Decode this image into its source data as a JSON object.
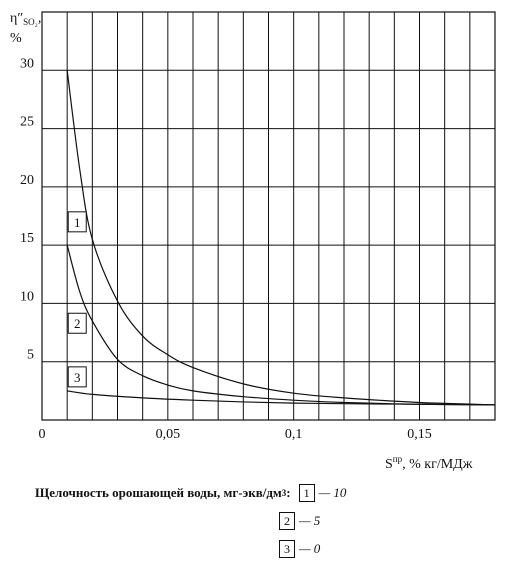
{
  "chart_data": {
    "type": "line",
    "ylabel_symbol": "η″",
    "ylabel_sub": "SO₂",
    "ylabel_suffix": ",",
    "ylabel_unit": "%",
    "xlabel_main": "S",
    "xlabel_sup": "пр",
    "xlabel_unit": ", % кг/МДж",
    "xlim": [
      0,
      0.18
    ],
    "ylim": [
      0,
      35
    ],
    "x_ticks": [
      {
        "v": 0,
        "label": "0"
      },
      {
        "v": 0.05,
        "label": "0,05"
      },
      {
        "v": 0.1,
        "label": "0,1"
      },
      {
        "v": 0.15,
        "label": "0,15"
      }
    ],
    "y_ticks": [
      {
        "v": 5,
        "label": "5"
      },
      {
        "v": 10,
        "label": "10"
      },
      {
        "v": 15,
        "label": "15"
      },
      {
        "v": 20,
        "label": "20"
      },
      {
        "v": 25,
        "label": "25"
      },
      {
        "v": 30,
        "label": "30"
      }
    ],
    "grid": true,
    "series": [
      {
        "name": "1",
        "label_at": [
          0.014,
          17
        ],
        "points": [
          [
            0.01,
            30
          ],
          [
            0.015,
            21.5
          ],
          [
            0.02,
            15.5
          ],
          [
            0.03,
            10.2
          ],
          [
            0.04,
            7.2
          ],
          [
            0.05,
            5.6
          ],
          [
            0.06,
            4.5
          ],
          [
            0.08,
            3.1
          ],
          [
            0.1,
            2.3
          ],
          [
            0.12,
            1.9
          ],
          [
            0.15,
            1.5
          ],
          [
            0.18,
            1.3
          ]
        ]
      },
      {
        "name": "2",
        "label_at": [
          0.014,
          8.3
        ],
        "points": [
          [
            0.01,
            15
          ],
          [
            0.015,
            11
          ],
          [
            0.02,
            8.5
          ],
          [
            0.03,
            5.2
          ],
          [
            0.04,
            3.8
          ],
          [
            0.05,
            3.0
          ],
          [
            0.06,
            2.5
          ],
          [
            0.08,
            2.0
          ],
          [
            0.1,
            1.7
          ],
          [
            0.12,
            1.5
          ],
          [
            0.15,
            1.35
          ],
          [
            0.18,
            1.3
          ]
        ]
      },
      {
        "name": "3",
        "label_at": [
          0.014,
          3.7
        ],
        "points": [
          [
            0.01,
            2.5
          ],
          [
            0.02,
            2.2
          ],
          [
            0.04,
            1.9
          ],
          [
            0.06,
            1.7
          ],
          [
            0.08,
            1.55
          ],
          [
            0.1,
            1.45
          ],
          [
            0.12,
            1.4
          ],
          [
            0.15,
            1.35
          ],
          [
            0.18,
            1.3
          ]
        ]
      }
    ]
  },
  "legend": {
    "title": "Щелочность орошающей воды, мг-экв/дм",
    "title_sup": "3",
    "title_colon": ":",
    "items": [
      {
        "box": "1",
        "value": "— 10"
      },
      {
        "box": "2",
        "value": "— 5"
      },
      {
        "box": "3",
        "value": "— 0"
      }
    ]
  }
}
